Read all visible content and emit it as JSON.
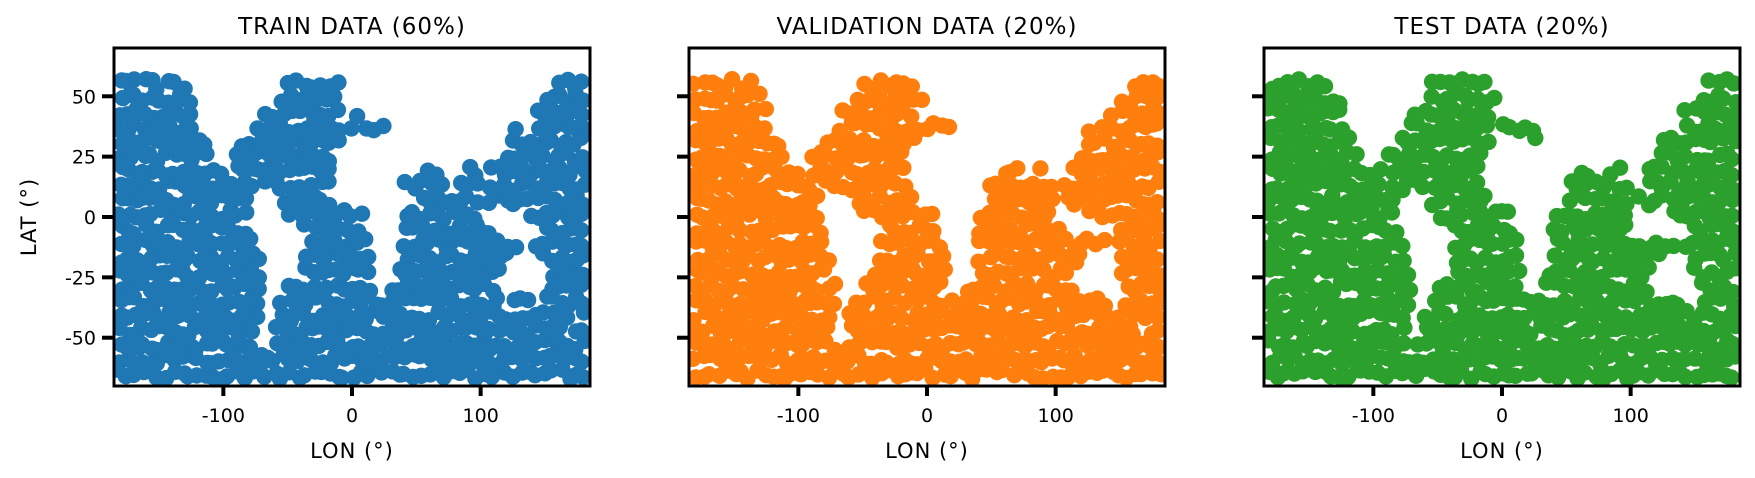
{
  "chart_data": [
    {
      "type": "scatter",
      "title": "TRAIN DATA (60%)",
      "xlabel": "LON (°)",
      "ylabel": "LAT (°)",
      "color": "#1f77b4",
      "xlim": [
        -185,
        185
      ],
      "ylim": [
        -70,
        70
      ],
      "xticks": [
        -100,
        0,
        100
      ],
      "yticks": [
        50,
        25,
        0,
        -25,
        -50
      ],
      "show_ytick_labels": true,
      "grid": false,
      "x_extent": [
        -180,
        180
      ],
      "y_extent": [
        -65,
        60
      ]
    },
    {
      "type": "scatter",
      "title": "VALIDATION DATA (20%)",
      "xlabel": "LON (°)",
      "ylabel": "",
      "color": "#ff7f0e",
      "xlim": [
        -185,
        185
      ],
      "ylim": [
        -70,
        70
      ],
      "xticks": [
        -100,
        0,
        100
      ],
      "yticks": [
        50,
        25,
        0,
        -25,
        -50
      ],
      "show_ytick_labels": false,
      "grid": false,
      "x_extent": [
        -180,
        180
      ],
      "y_extent": [
        -65,
        60
      ]
    },
    {
      "type": "scatter",
      "title": "TEST DATA (20%)",
      "xlabel": "LON (°)",
      "ylabel": "",
      "color": "#2ca02c",
      "xlim": [
        -185,
        185
      ],
      "ylim": [
        -70,
        70
      ],
      "xticks": [
        -100,
        0,
        100
      ],
      "yticks": [
        50,
        25,
        0,
        -25,
        -50
      ],
      "show_ytick_labels": false,
      "grid": false,
      "x_extent": [
        -180,
        180
      ],
      "y_extent": [
        -65,
        60
      ]
    }
  ]
}
